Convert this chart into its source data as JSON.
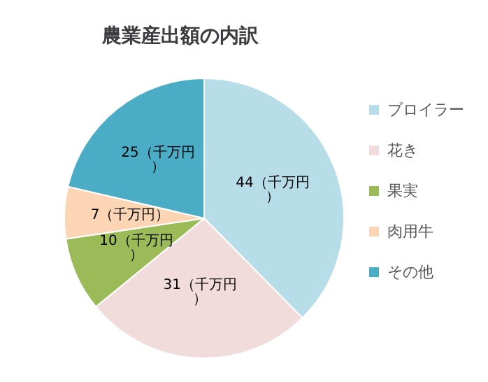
{
  "chart_data": {
    "type": "pie",
    "title": "農業産出額の内訳",
    "categories": [
      "ブロイラー",
      "花き",
      "果実",
      "肉用牛",
      "その他"
    ],
    "values": [
      44,
      31,
      10,
      7,
      25
    ],
    "colors": [
      "#b7dde8",
      "#f2dcdb",
      "#9bbb59",
      "#fcd5b5",
      "#4bacc6"
    ],
    "value_labels": [
      "44（千万円）",
      "31（千万円）",
      "10（千万円）",
      "7（千万円）",
      "25（千万円）"
    ],
    "legend": "right"
  }
}
